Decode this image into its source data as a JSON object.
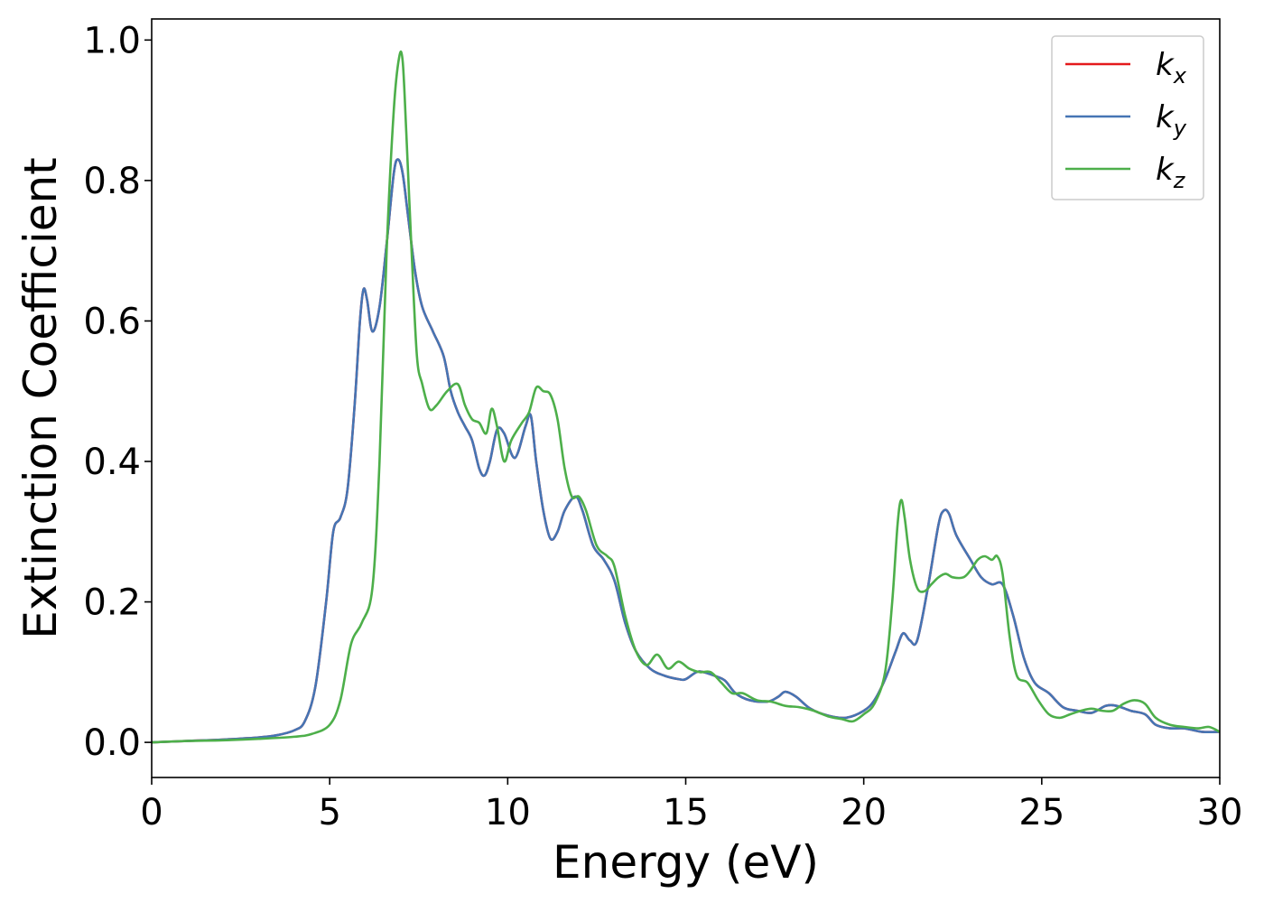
{
  "chart_data": {
    "type": "line",
    "xlabel": "Energy (eV)",
    "ylabel": "Extinction Coefficient",
    "xlim": [
      0,
      30
    ],
    "ylim": [
      -0.05,
      1.03
    ],
    "xticks": [
      0,
      5,
      10,
      15,
      20,
      25,
      30
    ],
    "xtick_labels": [
      "0",
      "5",
      "10",
      "15",
      "20",
      "25",
      "30"
    ],
    "yticks": [
      0.0,
      0.2,
      0.4,
      0.6,
      0.8,
      1.0
    ],
    "ytick_labels": [
      "0.0",
      "0.2",
      "0.4",
      "0.6",
      "0.8",
      "1.0"
    ],
    "grid": false,
    "legend_position": "top-right",
    "series": [
      {
        "name": "k_x",
        "label_base": "k",
        "label_sub": "x",
        "color": "#e41a1c",
        "x": [
          0,
          1,
          2,
          3,
          3.5,
          4,
          4.3,
          4.6,
          4.9,
          5.1,
          5.3,
          5.5,
          5.7,
          5.85,
          5.95,
          6.05,
          6.2,
          6.4,
          6.6,
          6.8,
          6.92,
          7.05,
          7.2,
          7.4,
          7.6,
          7.9,
          8.2,
          8.4,
          8.6,
          8.8,
          9.0,
          9.2,
          9.35,
          9.5,
          9.7,
          9.9,
          10.2,
          10.5,
          10.65,
          10.8,
          11.0,
          11.2,
          11.4,
          11.6,
          11.9,
          12.1,
          12.4,
          12.7,
          13.0,
          13.3,
          13.6,
          14.0,
          14.4,
          14.8,
          15.0,
          15.3,
          15.5,
          15.8,
          16.1,
          16.4,
          16.8,
          17.3,
          17.6,
          17.8,
          18.1,
          18.5,
          19.0,
          19.5,
          20.0,
          20.3,
          20.6,
          20.9,
          21.1,
          21.3,
          21.5,
          21.8,
          22.1,
          22.25,
          22.4,
          22.6,
          23.0,
          23.3,
          23.6,
          23.9,
          24.2,
          24.5,
          24.8,
          25.2,
          25.6,
          26.0,
          26.4,
          26.8,
          27.1,
          27.5,
          27.9,
          28.2,
          28.6,
          29.0,
          29.5,
          30.0
        ],
        "y": [
          0.0,
          0.002,
          0.004,
          0.007,
          0.01,
          0.017,
          0.03,
          0.08,
          0.2,
          0.3,
          0.32,
          0.36,
          0.48,
          0.6,
          0.645,
          0.63,
          0.585,
          0.62,
          0.71,
          0.81,
          0.83,
          0.81,
          0.75,
          0.67,
          0.62,
          0.585,
          0.55,
          0.5,
          0.47,
          0.45,
          0.43,
          0.39,
          0.38,
          0.4,
          0.445,
          0.44,
          0.405,
          0.45,
          0.465,
          0.4,
          0.33,
          0.29,
          0.3,
          0.33,
          0.35,
          0.33,
          0.28,
          0.26,
          0.23,
          0.17,
          0.13,
          0.105,
          0.095,
          0.09,
          0.09,
          0.1,
          0.1,
          0.095,
          0.088,
          0.07,
          0.06,
          0.058,
          0.065,
          0.072,
          0.065,
          0.048,
          0.038,
          0.035,
          0.045,
          0.06,
          0.09,
          0.13,
          0.155,
          0.145,
          0.145,
          0.22,
          0.31,
          0.33,
          0.325,
          0.295,
          0.26,
          0.235,
          0.225,
          0.225,
          0.18,
          0.12,
          0.085,
          0.07,
          0.05,
          0.045,
          0.042,
          0.052,
          0.052,
          0.045,
          0.04,
          0.025,
          0.02,
          0.02,
          0.015,
          0.015
        ]
      },
      {
        "name": "k_y",
        "label_base": "k",
        "label_sub": "y",
        "color": "#4575b4",
        "x": [
          0,
          1,
          2,
          3,
          3.5,
          4,
          4.3,
          4.6,
          4.9,
          5.1,
          5.3,
          5.5,
          5.7,
          5.85,
          5.95,
          6.05,
          6.2,
          6.4,
          6.6,
          6.8,
          6.92,
          7.05,
          7.2,
          7.4,
          7.6,
          7.9,
          8.2,
          8.4,
          8.6,
          8.8,
          9.0,
          9.2,
          9.35,
          9.5,
          9.7,
          9.9,
          10.2,
          10.5,
          10.65,
          10.8,
          11.0,
          11.2,
          11.4,
          11.6,
          11.9,
          12.1,
          12.4,
          12.7,
          13.0,
          13.3,
          13.6,
          14.0,
          14.4,
          14.8,
          15.0,
          15.3,
          15.5,
          15.8,
          16.1,
          16.4,
          16.8,
          17.3,
          17.6,
          17.8,
          18.1,
          18.5,
          19.0,
          19.5,
          20.0,
          20.3,
          20.6,
          20.9,
          21.1,
          21.3,
          21.5,
          21.8,
          22.1,
          22.25,
          22.4,
          22.6,
          23.0,
          23.3,
          23.6,
          23.9,
          24.2,
          24.5,
          24.8,
          25.2,
          25.6,
          26.0,
          26.4,
          26.8,
          27.1,
          27.5,
          27.9,
          28.2,
          28.6,
          29.0,
          29.5,
          30.0
        ],
        "y": [
          0.0,
          0.002,
          0.004,
          0.007,
          0.01,
          0.017,
          0.03,
          0.08,
          0.2,
          0.3,
          0.32,
          0.36,
          0.48,
          0.6,
          0.645,
          0.63,
          0.585,
          0.62,
          0.71,
          0.81,
          0.83,
          0.81,
          0.75,
          0.67,
          0.62,
          0.585,
          0.55,
          0.5,
          0.47,
          0.45,
          0.43,
          0.39,
          0.38,
          0.4,
          0.445,
          0.44,
          0.405,
          0.45,
          0.465,
          0.4,
          0.33,
          0.29,
          0.3,
          0.33,
          0.35,
          0.33,
          0.28,
          0.26,
          0.23,
          0.17,
          0.13,
          0.105,
          0.095,
          0.09,
          0.09,
          0.1,
          0.1,
          0.095,
          0.088,
          0.07,
          0.06,
          0.058,
          0.065,
          0.072,
          0.065,
          0.048,
          0.038,
          0.035,
          0.045,
          0.06,
          0.09,
          0.13,
          0.155,
          0.145,
          0.145,
          0.22,
          0.31,
          0.33,
          0.325,
          0.295,
          0.26,
          0.235,
          0.225,
          0.225,
          0.18,
          0.12,
          0.085,
          0.07,
          0.05,
          0.045,
          0.042,
          0.052,
          0.052,
          0.045,
          0.04,
          0.025,
          0.02,
          0.02,
          0.015,
          0.015
        ]
      },
      {
        "name": "k_z",
        "label_base": "k",
        "label_sub": "z",
        "color": "#4daf4a",
        "x": [
          0,
          1,
          2,
          3,
          4,
          4.5,
          5.0,
          5.3,
          5.6,
          5.9,
          6.2,
          6.4,
          6.6,
          6.8,
          6.95,
          7.05,
          7.15,
          7.3,
          7.45,
          7.6,
          7.8,
          8.0,
          8.3,
          8.6,
          8.8,
          9.0,
          9.2,
          9.4,
          9.55,
          9.7,
          9.9,
          10.1,
          10.4,
          10.6,
          10.8,
          11.0,
          11.2,
          11.4,
          11.6,
          11.8,
          12.0,
          12.2,
          12.5,
          12.8,
          13.0,
          13.3,
          13.6,
          13.9,
          14.2,
          14.5,
          14.8,
          15.1,
          15.4,
          15.7,
          16.0,
          16.3,
          16.6,
          17.0,
          17.4,
          17.8,
          18.2,
          18.6,
          19.0,
          19.4,
          19.7,
          20.0,
          20.3,
          20.6,
          20.8,
          20.95,
          21.05,
          21.15,
          21.3,
          21.5,
          21.7,
          21.9,
          22.1,
          22.3,
          22.5,
          22.8,
          23.0,
          23.2,
          23.4,
          23.6,
          23.75,
          23.9,
          24.1,
          24.3,
          24.6,
          24.9,
          25.2,
          25.5,
          25.8,
          26.1,
          26.4,
          26.7,
          27.0,
          27.3,
          27.6,
          27.9,
          28.2,
          28.6,
          29.0,
          29.4,
          29.7,
          30.0
        ],
        "y": [
          0.0,
          0.002,
          0.003,
          0.005,
          0.008,
          0.012,
          0.025,
          0.06,
          0.14,
          0.17,
          0.22,
          0.4,
          0.7,
          0.9,
          0.975,
          0.97,
          0.87,
          0.7,
          0.55,
          0.51,
          0.475,
          0.48,
          0.5,
          0.51,
          0.48,
          0.46,
          0.455,
          0.44,
          0.475,
          0.45,
          0.4,
          0.43,
          0.455,
          0.47,
          0.505,
          0.5,
          0.495,
          0.46,
          0.39,
          0.35,
          0.35,
          0.33,
          0.28,
          0.265,
          0.25,
          0.18,
          0.13,
          0.11,
          0.125,
          0.105,
          0.115,
          0.105,
          0.1,
          0.1,
          0.085,
          0.07,
          0.07,
          0.06,
          0.058,
          0.052,
          0.05,
          0.045,
          0.037,
          0.033,
          0.03,
          0.04,
          0.055,
          0.1,
          0.2,
          0.31,
          0.345,
          0.32,
          0.26,
          0.22,
          0.215,
          0.225,
          0.235,
          0.24,
          0.235,
          0.235,
          0.245,
          0.26,
          0.265,
          0.26,
          0.265,
          0.24,
          0.15,
          0.095,
          0.085,
          0.06,
          0.04,
          0.035,
          0.04,
          0.045,
          0.048,
          0.045,
          0.045,
          0.055,
          0.06,
          0.055,
          0.035,
          0.025,
          0.022,
          0.02,
          0.022,
          0.015
        ]
      }
    ]
  }
}
